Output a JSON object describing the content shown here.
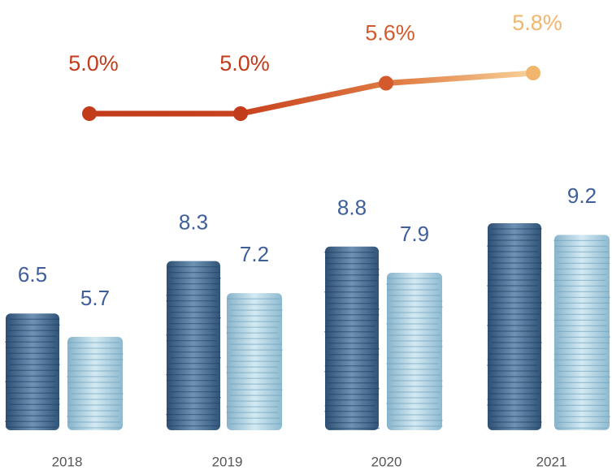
{
  "chart_data": [
    {
      "type": "line",
      "values": [
        5.0,
        5.0,
        5.6,
        5.8
      ],
      "value_labels": [
        "5.0%",
        "5.0%",
        "5.6%",
        "5.8%"
      ],
      "colors": [
        "#c23b1b",
        "#c23b1b",
        "#d25a2c",
        "#f2b56e"
      ]
    },
    {
      "type": "bar",
      "categories": [
        "2018",
        "2019",
        "2020",
        "2021"
      ],
      "series": [
        {
          "color": "#3f6890",
          "values": [
            6.5,
            8.3,
            8.8,
            9.6
          ],
          "value_labels": [
            "6.5",
            "8.3",
            "8.8",
            null
          ]
        },
        {
          "color": "#a3c9dc",
          "values": [
            5.7,
            7.2,
            7.9,
            9.2
          ],
          "value_labels": [
            "5.7",
            "7.2",
            "7.9",
            "9.2"
          ]
        }
      ]
    }
  ]
}
